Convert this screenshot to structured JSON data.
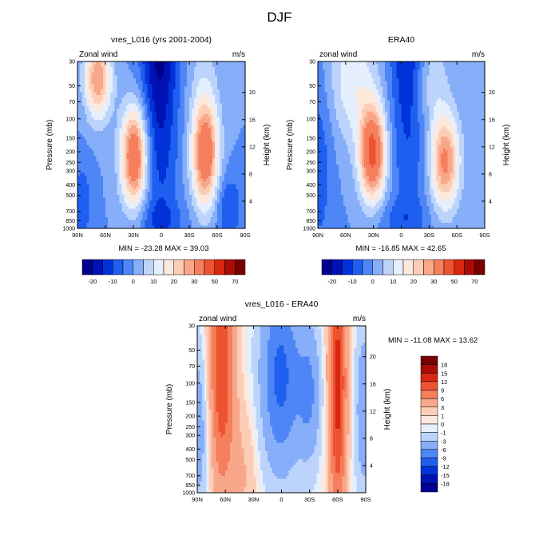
{
  "page_title": "DJF",
  "lat_ticks": [
    "90N",
    "60N",
    "30N",
    "0",
    "30S",
    "60S",
    "90S"
  ],
  "pressure_ticks": [
    "30",
    "50",
    "70",
    "100",
    "150",
    "200",
    "250",
    "300",
    "400",
    "500",
    "700",
    "850",
    "1000"
  ],
  "height_ticks": [
    "20",
    "16",
    "12",
    "8",
    "4"
  ],
  "palette": [
    "#00008f",
    "#0012b4",
    "#0033d9",
    "#1f5ff0",
    "#4f86f7",
    "#86aef9",
    "#bcd4fb",
    "#e6effd",
    "#fde8dc",
    "#fccdb6",
    "#f9a78b",
    "#f57e5c",
    "#ee5330",
    "#d9260f",
    "#a80c04",
    "#7a0000"
  ],
  "chart_data": [
    {
      "type": "heatmap",
      "title": "vres_L016 (yrs 2001-2004)",
      "left_label": "Zonal wind",
      "units": "m/s",
      "xlabel": "",
      "ylabel": "Pressure (mb)",
      "ylabel_right": "Height (km)",
      "x_range": [
        90,
        -90
      ],
      "y_range": [
        30,
        1000
      ],
      "y_scale": "log",
      "min_label": "MIN = -23.28  MAX = 39.03",
      "min": -23.28,
      "max": 39.03,
      "colorbar_labels": [
        "-20",
        "-10",
        "0",
        "10",
        "20",
        "30",
        "50",
        "70"
      ]
    },
    {
      "type": "heatmap",
      "title": "ERA40",
      "left_label": "zonal wind",
      "units": "m/s",
      "xlabel": "",
      "ylabel": "Pressure (mb)",
      "ylabel_right": "Height (km)",
      "x_range": [
        90,
        -90
      ],
      "y_range": [
        30,
        1000
      ],
      "y_scale": "log",
      "min_label": "MIN = -16.85  MAX = 42.65",
      "min": -16.85,
      "max": 42.65,
      "colorbar_labels": [
        "-20",
        "-10",
        "0",
        "10",
        "20",
        "30",
        "50",
        "70"
      ]
    },
    {
      "type": "heatmap",
      "title": "vres_L016 - ERA40",
      "left_label": "zonal wind",
      "units": "m/s",
      "xlabel": "",
      "ylabel": "Pressure (mb)",
      "ylabel_right": "Height (km)",
      "x_range": [
        90,
        -90
      ],
      "y_range": [
        30,
        1000
      ],
      "y_scale": "log",
      "min_label": "MIN = -11.08  MAX =  13.62",
      "min": -11.08,
      "max": 13.62,
      "colorbar_labels": [
        "18",
        "15",
        "12",
        "9",
        "6",
        "3",
        "1",
        "0",
        "-1",
        "-3",
        "-6",
        "-9",
        "-12",
        "-15",
        "-18"
      ]
    }
  ]
}
